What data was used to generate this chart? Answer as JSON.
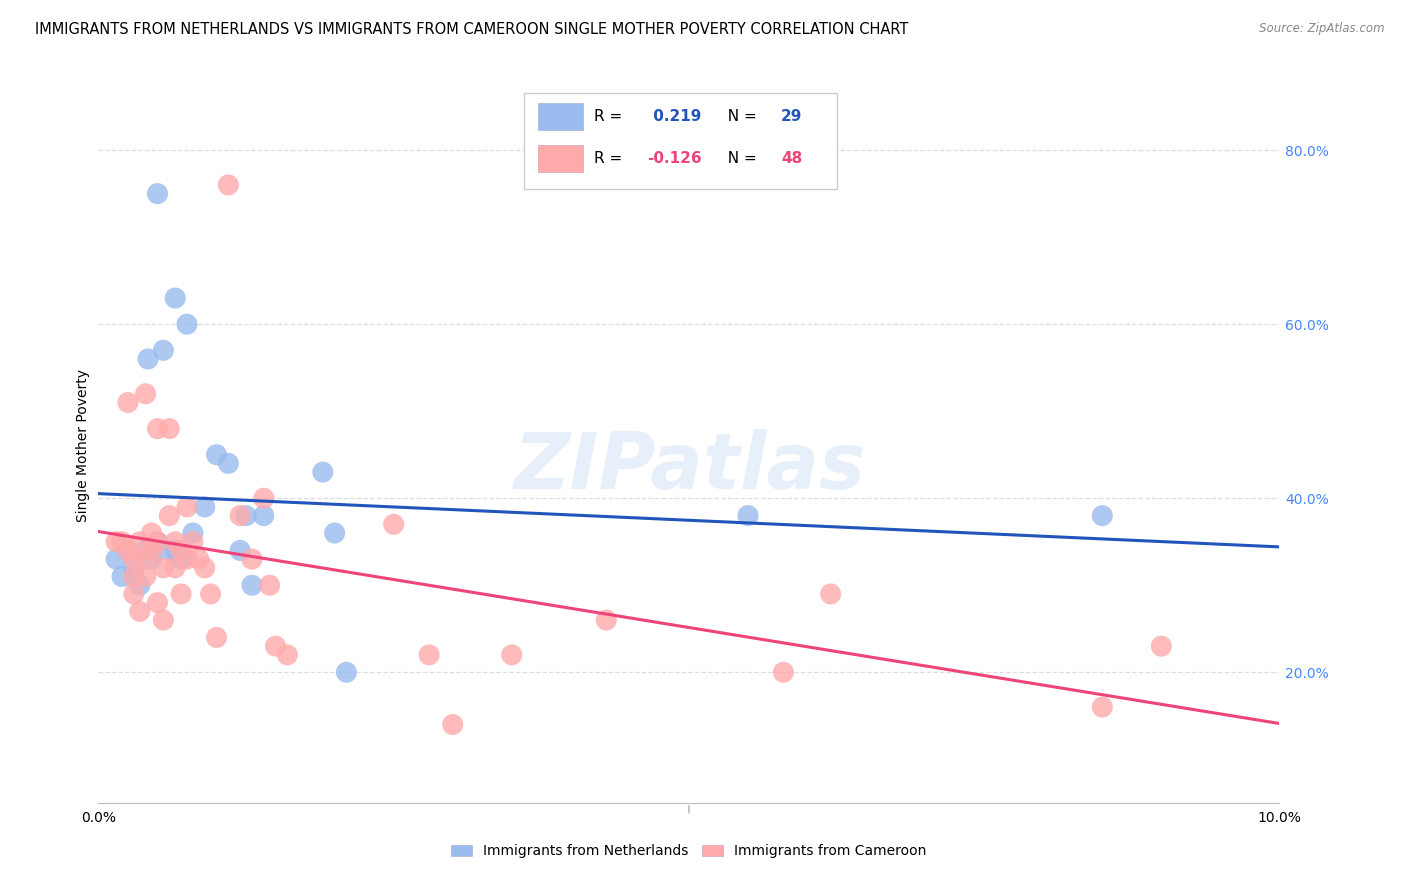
{
  "title": "IMMIGRANTS FROM NETHERLANDS VS IMMIGRANTS FROM CAMEROON SINGLE MOTHER POVERTY CORRELATION CHART",
  "source": "Source: ZipAtlas.com",
  "ylabel": "Single Mother Poverty",
  "xmin": 0.0,
  "xmax": 10.0,
  "ymin": 5.0,
  "ymax": 87.0,
  "color_netherlands": "#99bbee",
  "color_cameroon": "#ffaaaa",
  "color_line_netherlands": "#2255bb",
  "color_line_cameroon": "#ee4477",
  "background_color": "#ffffff",
  "grid_color": "#dddddd",
  "netherlands_x": [
    0.15,
    0.2,
    0.25,
    0.3,
    0.35,
    0.4,
    0.42,
    0.45,
    0.5,
    0.5,
    0.55,
    0.6,
    0.65,
    0.65,
    0.7,
    0.75,
    0.8,
    0.9,
    1.0,
    1.1,
    1.2,
    1.25,
    1.3,
    1.4,
    1.9,
    2.0,
    2.1,
    5.5,
    8.5
  ],
  "netherlands_y": [
    33,
    31,
    34,
    32,
    30,
    34,
    56,
    33,
    35,
    75,
    57,
    34,
    34,
    63,
    33,
    60,
    36,
    39,
    45,
    44,
    34,
    38,
    30,
    38,
    43,
    36,
    20,
    38,
    38
  ],
  "cameroon_x": [
    0.15,
    0.2,
    0.25,
    0.25,
    0.3,
    0.3,
    0.3,
    0.35,
    0.35,
    0.4,
    0.4,
    0.4,
    0.45,
    0.45,
    0.5,
    0.5,
    0.5,
    0.55,
    0.55,
    0.6,
    0.6,
    0.65,
    0.65,
    0.7,
    0.7,
    0.75,
    0.75,
    0.8,
    0.85,
    0.9,
    0.95,
    1.0,
    1.1,
    1.2,
    1.3,
    1.4,
    1.45,
    1.5,
    1.6,
    2.5,
    2.8,
    3.0,
    3.5,
    4.3,
    5.8,
    6.2,
    8.5,
    9.0
  ],
  "cameroon_y": [
    35,
    35,
    34,
    51,
    33,
    31,
    29,
    35,
    27,
    33,
    31,
    52,
    36,
    34,
    28,
    35,
    48,
    32,
    26,
    48,
    38,
    35,
    32,
    34,
    29,
    33,
    39,
    35,
    33,
    32,
    29,
    24,
    76,
    38,
    33,
    40,
    30,
    23,
    22,
    37,
    22,
    14,
    22,
    26,
    20,
    29,
    16,
    23
  ],
  "right_y_ticks": [
    20,
    40,
    60,
    80
  ],
  "right_y_labels": [
    "20.0%",
    "40.0%",
    "60.0%",
    "80.0%"
  ],
  "bottom_legend_labels": [
    "Immigrants from Netherlands",
    "Immigrants from Cameroon"
  ],
  "watermark": "ZIPatlas",
  "title_fontsize": 10.5
}
